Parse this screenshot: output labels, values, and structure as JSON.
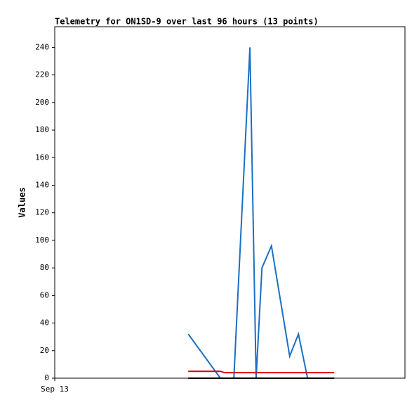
{
  "chart_data": {
    "type": "line",
    "title": "Telemetry for ON1SD-9 over last 96 hours (13 points)",
    "y_label": "Values",
    "x": [
      36.6,
      45.4,
      46.6,
      49.1,
      53.5,
      55.2,
      56.8,
      59.4,
      64.4,
      66.8,
      69.3,
      71.8,
      76.6
    ],
    "xlim": [
      0,
      96
    ],
    "xticks": [
      {
        "value": 0,
        "label": "Sep 13"
      }
    ],
    "ylim": [
      0,
      255
    ],
    "yticks": [
      0,
      20,
      40,
      60,
      80,
      100,
      120,
      140,
      160,
      180,
      200,
      220,
      240
    ],
    "series": [
      {
        "color": "#1a6fc4",
        "values": [
          32,
          0,
          0,
          0,
          240,
          0,
          80,
          96,
          16,
          32,
          0,
          0,
          0
        ]
      },
      {
        "color": "#e00000",
        "values": [
          5,
          5,
          4,
          4,
          4,
          4,
          4,
          4,
          4,
          4,
          4,
          4,
          4
        ]
      },
      {
        "color": "#000000",
        "values": [
          0,
          0,
          0,
          0,
          0,
          0,
          0,
          0,
          0,
          0,
          0,
          0,
          0
        ]
      }
    ]
  }
}
